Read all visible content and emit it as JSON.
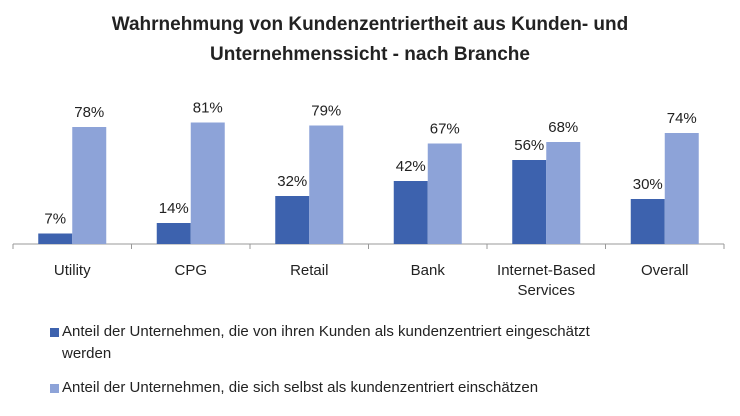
{
  "chart_data": {
    "type": "bar",
    "title_lines": [
      "Wahrnehmung von Kundenzentriertheit aus Kunden- und",
      "Unternehmenssicht - nach Branche"
    ],
    "categories": [
      "Utility",
      "CPG",
      "Retail",
      "Bank",
      "Internet-Based Services",
      "Overall"
    ],
    "category_lines": [
      [
        "Utility"
      ],
      [
        "CPG"
      ],
      [
        "Retail"
      ],
      [
        "Bank"
      ],
      [
        "Internet-Based",
        "Services"
      ],
      [
        "Overall"
      ]
    ],
    "series": [
      {
        "name": "Anteil der Unternehmen, die von ihren Kunden als kundenzentriert eingeschätzt werden",
        "values": [
          7,
          14,
          32,
          42,
          56,
          30
        ],
        "labels": [
          "7%",
          "14%",
          "32%",
          "42%",
          "56%",
          "30%"
        ],
        "color": "#3D62AE"
      },
      {
        "name": "Anteil der Unternehmen, die sich selbst als kundenzentriert einschätzen",
        "values": [
          78,
          81,
          79,
          67,
          68,
          74
        ],
        "labels": [
          "78%",
          "81%",
          "79%",
          "67%",
          "68%",
          "74%"
        ],
        "color": "#8DA3D8"
      }
    ],
    "legend_lines": [
      [
        "Anteil der Unternehmen, die von ihren Kunden als kundenzentriert eingeschätzt",
        "werden"
      ],
      [
        "Anteil der Unternehmen, die sich selbst als kundenzentriert einschätzen"
      ]
    ],
    "ylim": [
      0,
      100
    ],
    "y_axis_visible": false,
    "grid": false,
    "legend_position": "bottom"
  }
}
